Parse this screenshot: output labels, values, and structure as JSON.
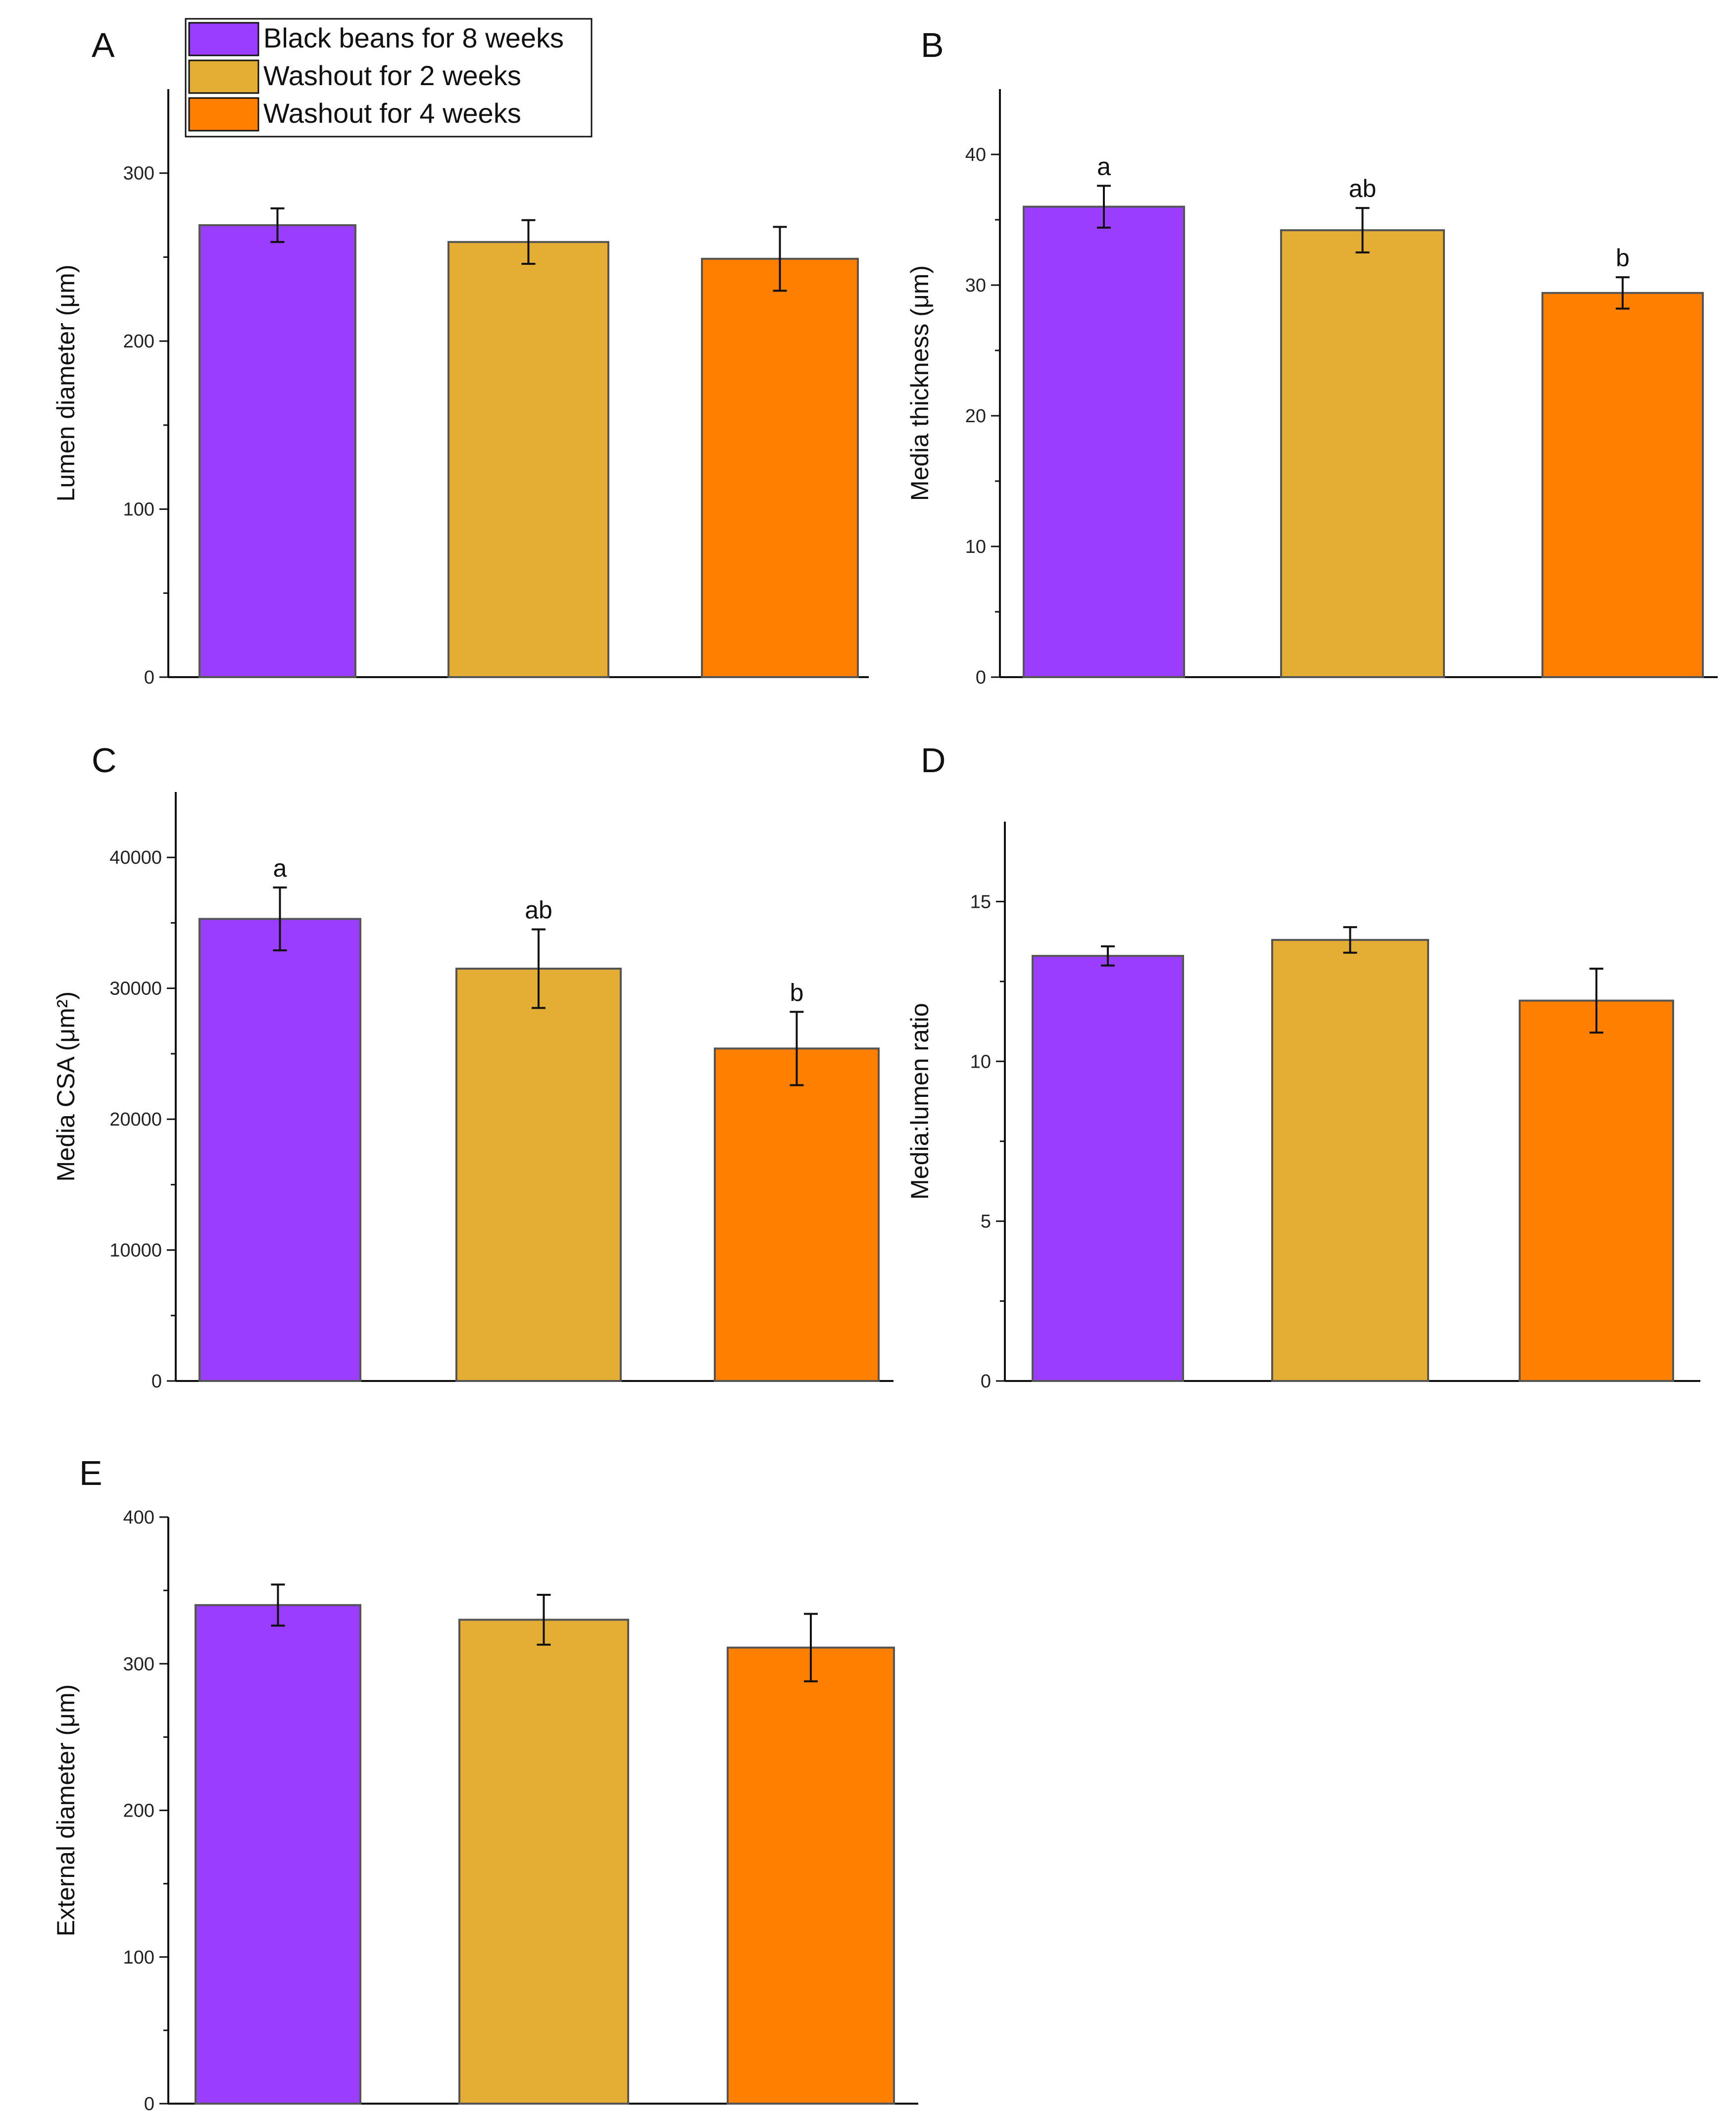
{
  "legend": {
    "entries": [
      {
        "label": "Black beans for 8 weeks",
        "color": "#9b3dff"
      },
      {
        "label": "Washout for 2 weeks",
        "color": "#e3ae33"
      },
      {
        "label": "Washout for 4 weeks",
        "color": "#ff8000"
      }
    ]
  },
  "chart_data": [
    {
      "panel": "A",
      "type": "bar",
      "categories": [
        "Black beans for 8 weeks",
        "Washout for 2 weeks",
        "Washout for 4 weeks"
      ],
      "values": [
        269,
        259,
        249
      ],
      "errors": [
        10,
        13,
        19
      ],
      "sig_labels": [
        "",
        "",
        ""
      ],
      "ylabel": "Lumen diameter (μm)",
      "ylim": [
        0,
        350
      ],
      "yticks": [
        0,
        100,
        200,
        300
      ],
      "ytick_labels": [
        "0",
        "100",
        "200",
        "300"
      ]
    },
    {
      "panel": "B",
      "type": "bar",
      "categories": [
        "Black beans for 8 weeks",
        "Washout for 2 weeks",
        "Washout for 4 weeks"
      ],
      "values": [
        36,
        34.2,
        29.4
      ],
      "errors": [
        1.6,
        1.7,
        1.2
      ],
      "sig_labels": [
        "a",
        "ab",
        "b"
      ],
      "ylabel": "Media thickness (μm)",
      "ylim": [
        0,
        45
      ],
      "yticks": [
        0,
        10,
        20,
        30,
        40
      ],
      "ytick_labels": [
        "0",
        "10",
        "20",
        "30",
        "40"
      ]
    },
    {
      "panel": "C",
      "type": "bar",
      "categories": [
        "Black beans for 8 weeks",
        "Washout for 2 weeks",
        "Washout for 4 weeks"
      ],
      "values": [
        35300,
        31500,
        25400
      ],
      "errors": [
        2400,
        3000,
        2800
      ],
      "sig_labels": [
        "a",
        "ab",
        "b"
      ],
      "ylabel": "Media CSA (μm²)",
      "ylim": [
        0,
        45000
      ],
      "yticks": [
        0,
        10000,
        20000,
        30000,
        40000
      ],
      "ytick_labels": [
        "0",
        "10000",
        "20000",
        "30000",
        "40000"
      ]
    },
    {
      "panel": "D",
      "type": "bar",
      "categories": [
        "Black beans for 8 weeks",
        "Washout for 2 weeks",
        "Washout for 4 weeks"
      ],
      "values": [
        13.3,
        13.8,
        11.9
      ],
      "errors": [
        0.3,
        0.4,
        1.0
      ],
      "sig_labels": [
        "",
        "",
        ""
      ],
      "ylabel": "Media:lumen ratio",
      "ylim": [
        0,
        17.5
      ],
      "yticks": [
        0,
        5,
        10,
        15
      ],
      "ytick_labels": [
        "0",
        "5",
        "10",
        "15"
      ]
    },
    {
      "panel": "E",
      "type": "bar",
      "categories": [
        "Black beans for 8 weeks",
        "Washout for 2 weeks",
        "Washout for 4 weeks"
      ],
      "values": [
        340,
        330,
        311
      ],
      "errors": [
        14,
        17,
        23
      ],
      "sig_labels": [
        "",
        "",
        ""
      ],
      "ylabel": "External diameter (μm)",
      "ylim": [
        0,
        400
      ],
      "yticks": [
        0,
        100,
        200,
        300,
        400
      ],
      "ytick_labels": [
        "0",
        "100",
        "200",
        "300",
        "400"
      ]
    }
  ]
}
